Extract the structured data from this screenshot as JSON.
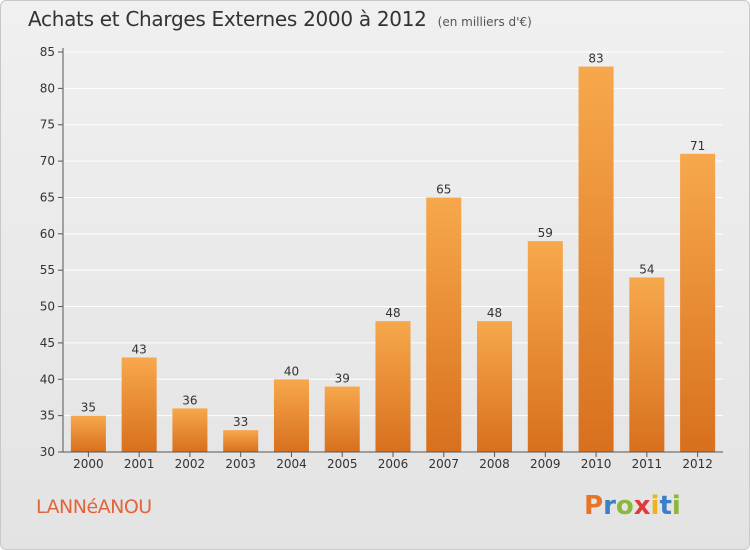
{
  "header": {
    "title": "Achats et Charges Externes 2000 à 2012",
    "subtitle": "(en milliers d'€)"
  },
  "footer": {
    "commune": "LANNéANOU",
    "logo_text": "Proxiti",
    "logo_colors": [
      "#e8742a",
      "#3b7fc4",
      "#8bb83a",
      "#e03a3a",
      "#f0b21a",
      "#3b7fc4",
      "#8bb83a"
    ]
  },
  "colors": {
    "bar_light": "#f7a84c",
    "bar_dark": "#d8701e",
    "grid": "#ffffff",
    "axis_text": "#333333",
    "commune_text": "#e0643c"
  },
  "chart_data": {
    "type": "bar",
    "title": "Achats et Charges Externes 2000 à 2012",
    "subtitle": "(en milliers d'€)",
    "categories": [
      "2000",
      "2001",
      "2002",
      "2003",
      "2004",
      "2005",
      "2006",
      "2007",
      "2008",
      "2009",
      "2010",
      "2011",
      "2012"
    ],
    "values": [
      35,
      43,
      36,
      33,
      40,
      39,
      48,
      65,
      48,
      59,
      83,
      54,
      71
    ],
    "ylim": [
      30,
      85
    ],
    "yticks": [
      30,
      35,
      40,
      45,
      50,
      55,
      60,
      65,
      70,
      75,
      80,
      85
    ],
    "grid": true,
    "data_labels": true
  }
}
